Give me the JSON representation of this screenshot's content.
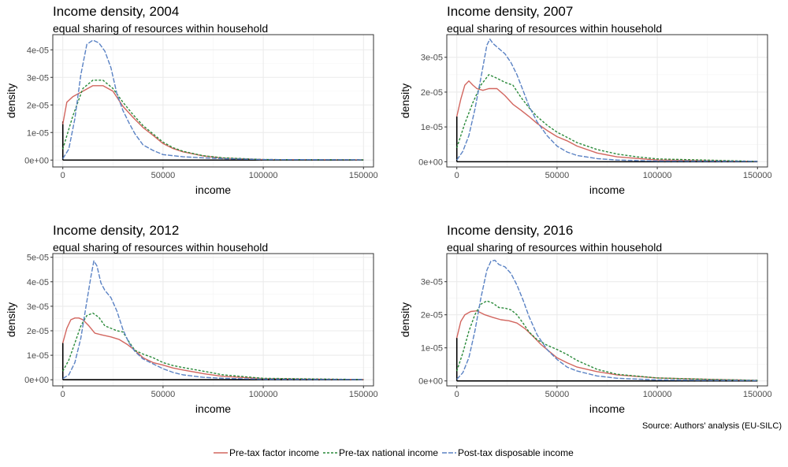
{
  "colors": {
    "factor": "#d2665f",
    "national": "#2a8a3a",
    "disposable": "#5a82c4",
    "spike": "#000000"
  },
  "caption": "Source: Authors' analysis (EU-SILC)",
  "legend": [
    {
      "key": "factor",
      "label": "Pre-tax factor income",
      "dash": "none"
    },
    {
      "key": "national",
      "label": "Pre-tax national income",
      "dash": "3,2"
    },
    {
      "key": "disposable",
      "label": "Post-tax disposable income",
      "dash": "6,2"
    }
  ],
  "chart_data": [
    {
      "type": "line",
      "title": "Income density, 2004",
      "subtitle": "equal sharing of resources within household",
      "xlabel": "income",
      "ylabel": "density",
      "xlim": [
        -5000,
        155000
      ],
      "ylim": [
        -2.5e-06,
        4.55e-05
      ],
      "x_ticks": [
        0,
        50000,
        100000,
        150000
      ],
      "x_tick_labels": [
        "0",
        "50000",
        "100000",
        "150000"
      ],
      "y_ticks": [
        0,
        1e-05,
        2e-05,
        3e-05,
        4e-05
      ],
      "y_tick_labels": [
        "0e+00",
        "1e-05",
        "2e-05",
        "3e-05",
        "4e-05"
      ],
      "spike_top": 1.4e-05,
      "series": [
        {
          "key": "factor",
          "x": [
            0,
            2000,
            5000,
            10000,
            15000,
            20000,
            25000,
            30000,
            35000,
            40000,
            45000,
            50000,
            55000,
            60000,
            70000,
            80000,
            100000,
            150000
          ],
          "y": [
            1.3e-05,
            2.1e-05,
            2.3e-05,
            2.5e-05,
            2.7e-05,
            2.7e-05,
            2.5e-05,
            1.95e-05,
            1.55e-05,
            1.18e-05,
            9e-06,
            6e-06,
            4.2e-06,
            3e-06,
            1.5e-06,
            7e-07,
            2e-07,
            1e-07
          ]
        },
        {
          "key": "national",
          "x": [
            0,
            5000,
            10000,
            15000,
            20000,
            25000,
            30000,
            35000,
            40000,
            45000,
            50000,
            55000,
            60000,
            70000,
            80000,
            100000,
            150000
          ],
          "y": [
            4e-06,
            1.6e-05,
            2.6e-05,
            2.9e-05,
            2.9e-05,
            2.6e-05,
            2.1e-05,
            1.65e-05,
            1.25e-05,
            9.5e-06,
            6.5e-06,
            4.5e-06,
            3.2e-06,
            1.6e-06,
            8e-07,
            2e-07,
            1e-07
          ]
        },
        {
          "key": "disposable",
          "x": [
            0,
            3000,
            6000,
            9000,
            12000,
            15000,
            18000,
            21000,
            24000,
            27000,
            30000,
            33000,
            36000,
            40000,
            45000,
            50000,
            60000,
            70000,
            80000,
            100000,
            150000
          ],
          "y": [
            5e-07,
            4e-06,
            1.5e-05,
            3.1e-05,
            4.2e-05,
            4.35e-05,
            4.25e-05,
            3.95e-05,
            3.35e-05,
            2.4e-05,
            1.8e-05,
            1.35e-05,
            9.5e-06,
            5.5e-06,
            3.5e-06,
            2e-06,
            1.2e-06,
            8e-07,
            5e-07,
            2e-07,
            1e-07
          ]
        }
      ]
    },
    {
      "type": "line",
      "title": "Income density, 2007",
      "subtitle": "equal sharing of resources within household",
      "xlabel": "income",
      "ylabel": "density",
      "xlim": [
        -5000,
        155000
      ],
      "ylim": [
        -1.5e-06,
        3.65e-05
      ],
      "x_ticks": [
        0,
        50000,
        100000,
        150000
      ],
      "x_tick_labels": [
        "0",
        "50000",
        "100000",
        "150000"
      ],
      "y_ticks": [
        0,
        1e-05,
        2e-05,
        3e-05
      ],
      "y_tick_labels": [
        "0e+00",
        "1e-05",
        "2e-05",
        "3e-05"
      ],
      "spike_top": 1.3e-05,
      "series": [
        {
          "key": "factor",
          "x": [
            0,
            2000,
            4000,
            6000,
            8000,
            10000,
            13000,
            16000,
            20000,
            24000,
            28000,
            32000,
            36000,
            40000,
            45000,
            50000,
            55000,
            60000,
            70000,
            80000,
            100000,
            150000
          ],
          "y": [
            1.3e-05,
            1.8e-05,
            2.2e-05,
            2.32e-05,
            2.2e-05,
            2.1e-05,
            2.05e-05,
            2.1e-05,
            2.1e-05,
            1.9e-05,
            1.65e-05,
            1.48e-05,
            1.3e-05,
            1.1e-05,
            9e-06,
            7.2e-06,
            6e-06,
            4.5e-06,
            2.5e-06,
            1.4e-06,
            5e-07,
            1e-07
          ]
        },
        {
          "key": "national",
          "x": [
            0,
            4000,
            8000,
            12000,
            16000,
            20000,
            24000,
            28000,
            32000,
            36000,
            40000,
            45000,
            50000,
            55000,
            60000,
            70000,
            80000,
            90000,
            100000,
            150000
          ],
          "y": [
            4e-06,
            1.1e-05,
            1.7e-05,
            2.2e-05,
            2.5e-05,
            2.4e-05,
            2.28e-05,
            2.2e-05,
            1.85e-05,
            1.55e-05,
            1.3e-05,
            1.05e-05,
            8.5e-06,
            7e-06,
            5.5e-06,
            3.5e-06,
            2.2e-06,
            1.4e-06,
            8e-07,
            1e-07
          ]
        },
        {
          "key": "disposable",
          "x": [
            0,
            3000,
            6000,
            9000,
            12000,
            15000,
            16500,
            18000,
            21000,
            24000,
            27000,
            30000,
            33000,
            36000,
            40000,
            45000,
            50000,
            55000,
            60000,
            70000,
            80000,
            100000,
            150000
          ],
          "y": [
            5e-07,
            3e-06,
            7.5e-06,
            1.5e-05,
            2.4e-05,
            3.35e-05,
            3.52e-05,
            3.4e-05,
            3.25e-05,
            3.1e-05,
            2.85e-05,
            2.5e-05,
            2.05e-05,
            1.6e-05,
            1.15e-05,
            7.5e-06,
            4.5e-06,
            2.8e-06,
            1.8e-06,
            9e-07,
            5e-07,
            2e-07,
            1e-07
          ]
        }
      ]
    },
    {
      "type": "line",
      "title": "Income density, 2012",
      "subtitle": "equal sharing of resources within household",
      "xlabel": "income",
      "ylabel": "density",
      "xlim": [
        -5000,
        155000
      ],
      "ylim": [
        -2.5e-06,
        5.15e-05
      ],
      "x_ticks": [
        0,
        50000,
        100000,
        150000
      ],
      "x_tick_labels": [
        "0",
        "50000",
        "100000",
        "150000"
      ],
      "y_ticks": [
        0,
        1e-05,
        2e-05,
        3e-05,
        4e-05,
        5e-05
      ],
      "y_tick_labels": [
        "0e+00",
        "1e-05",
        "2e-05",
        "3e-05",
        "4e-05",
        "5e-05"
      ],
      "spike_top": 1.5e-05,
      "series": [
        {
          "key": "factor",
          "x": [
            0,
            2000,
            4000,
            6000,
            8000,
            10000,
            13000,
            16000,
            20000,
            24000,
            28000,
            32000,
            36000,
            40000,
            45000,
            50000,
            55000,
            60000,
            70000,
            80000,
            100000,
            150000
          ],
          "y": [
            1.5e-05,
            2.1e-05,
            2.45e-05,
            2.52e-05,
            2.52e-05,
            2.45e-05,
            2.2e-05,
            1.9e-05,
            1.82e-05,
            1.75e-05,
            1.65e-05,
            1.45e-05,
            1.2e-05,
            9e-06,
            7e-06,
            6e-06,
            4.8e-06,
            4e-06,
            2.5e-06,
            1.4e-06,
            5e-07,
            1e-07
          ]
        },
        {
          "key": "national",
          "x": [
            0,
            3000,
            6000,
            9000,
            12000,
            15000,
            18000,
            21000,
            24000,
            27000,
            30000,
            33000,
            36000,
            40000,
            45000,
            50000,
            55000,
            60000,
            70000,
            80000,
            100000,
            150000
          ],
          "y": [
            3.5e-06,
            8e-06,
            1.5e-05,
            2.2e-05,
            2.62e-05,
            2.72e-05,
            2.55e-05,
            2.2e-05,
            2.1e-05,
            2e-05,
            1.95e-05,
            1.55e-05,
            1.2e-05,
            1.05e-05,
            9e-06,
            7e-06,
            5.8e-06,
            5e-06,
            3.5e-06,
            2e-06,
            6e-07,
            1e-07
          ]
        },
        {
          "key": "disposable",
          "x": [
            0,
            3000,
            6000,
            9000,
            12000,
            14000,
            15500,
            17000,
            19000,
            21000,
            24000,
            27000,
            30000,
            33000,
            36000,
            40000,
            45000,
            50000,
            55000,
            60000,
            70000,
            80000,
            100000,
            150000
          ],
          "y": [
            5e-07,
            2e-06,
            7e-06,
            1.7e-05,
            3.2e-05,
            4.2e-05,
            4.85e-05,
            4.65e-05,
            3.95e-05,
            3.65e-05,
            3.35e-05,
            2.8e-05,
            2.05e-05,
            1.5e-05,
            1.15e-05,
            8.5e-06,
            6.5e-06,
            4.5e-06,
            3e-06,
            2e-06,
            1e-06,
            6e-07,
            2e-07,
            1e-07
          ]
        }
      ]
    },
    {
      "type": "line",
      "title": "Income density, 2016",
      "subtitle": "equal sharing of resources within household",
      "xlabel": "income",
      "ylabel": "density",
      "xlim": [
        -5000,
        155000
      ],
      "ylim": [
        -1.5e-06,
        3.85e-05
      ],
      "x_ticks": [
        0,
        50000,
        100000,
        150000
      ],
      "x_tick_labels": [
        "0",
        "50000",
        "100000",
        "150000"
      ],
      "y_ticks": [
        0,
        1e-05,
        2e-05,
        3e-05
      ],
      "y_tick_labels": [
        "0e+00",
        "1e-05",
        "2e-05",
        "3e-05"
      ],
      "spike_top": 1.3e-05,
      "series": [
        {
          "key": "factor",
          "x": [
            0,
            2000,
            4000,
            7000,
            10000,
            14000,
            18000,
            22000,
            26000,
            30000,
            34000,
            38000,
            42000,
            46000,
            50000,
            55000,
            60000,
            70000,
            80000,
            100000,
            130000,
            150000
          ],
          "y": [
            1.3e-05,
            1.8e-05,
            2e-05,
            2.1e-05,
            2.12e-05,
            2e-05,
            1.92e-05,
            1.85e-05,
            1.82e-05,
            1.75e-05,
            1.58e-05,
            1.35e-05,
            1.1e-05,
            9e-06,
            7e-06,
            5.5e-06,
            4.2e-06,
            2.8e-06,
            1.8e-06,
            9e-07,
            4e-07,
            2e-07
          ]
        },
        {
          "key": "national",
          "x": [
            0,
            3000,
            6000,
            9000,
            12000,
            15000,
            18000,
            21000,
            24000,
            27000,
            30000,
            33000,
            36000,
            40000,
            45000,
            50000,
            55000,
            60000,
            70000,
            80000,
            100000,
            130000,
            150000
          ],
          "y": [
            3e-06,
            8.5e-06,
            1.5e-05,
            2e-05,
            2.32e-05,
            2.42e-05,
            2.35e-05,
            2.22e-05,
            2.2e-05,
            2.15e-05,
            2e-05,
            1.75e-05,
            1.48e-05,
            1.25e-05,
            1.08e-05,
            9.5e-06,
            8e-06,
            6.2e-06,
            3.5e-06,
            2e-06,
            9e-07,
            4e-07,
            2e-07
          ]
        },
        {
          "key": "disposable",
          "x": [
            0,
            3000,
            6000,
            9000,
            12000,
            15000,
            17000,
            19000,
            21000,
            24000,
            27000,
            30000,
            33000,
            36000,
            40000,
            45000,
            50000,
            55000,
            60000,
            70000,
            80000,
            100000,
            150000
          ],
          "y": [
            5e-07,
            2.5e-06,
            7e-06,
            1.5e-05,
            2.5e-05,
            3.35e-05,
            3.62e-05,
            3.65e-05,
            3.52e-05,
            3.45e-05,
            3.25e-05,
            2.9e-05,
            2.45e-05,
            1.95e-05,
            1.4e-05,
            9.5e-06,
            6.5e-06,
            4.2e-06,
            3e-06,
            1.5e-06,
            8e-07,
            3e-07,
            1e-07
          ]
        }
      ]
    }
  ]
}
